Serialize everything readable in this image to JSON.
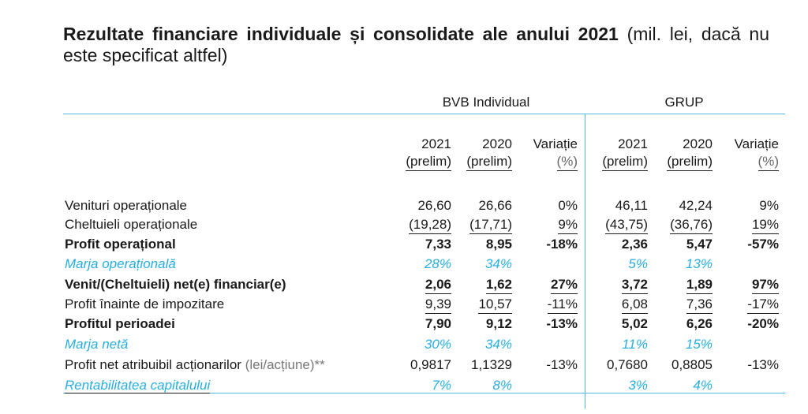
{
  "title": {
    "bold": "Rezultate financiare individuale și consolidate ale anului 2021",
    "normal": " (mil. lei, dacă nu este specificat altfel)"
  },
  "groups": {
    "individual": "BVB Individual",
    "group": "GRUP"
  },
  "columns": [
    {
      "year": "2021",
      "sub": "(prelim)"
    },
    {
      "year": "2020",
      "sub": "(prelim)"
    },
    {
      "year": "Variație",
      "sub": "(%)"
    },
    {
      "year": "2021",
      "sub": "(prelim)"
    },
    {
      "year": "2020",
      "sub": "(prelim)"
    },
    {
      "year": "Variație",
      "sub": "(%)"
    }
  ],
  "rows": [
    {
      "label": "Venituri operaționale",
      "style": "normal",
      "values": [
        "26,60",
        "26,66",
        "0%",
        "46,11",
        "42,24",
        "9%"
      ]
    },
    {
      "label": "Cheltuieli operaționale",
      "style": "normal",
      "underline": true,
      "values": [
        "(19,28)",
        "(17,71)",
        "9%",
        "(43,75)",
        "(36,76)",
        "19%"
      ]
    },
    {
      "label": "Profit operațional",
      "style": "bold",
      "values": [
        "7,33",
        "8,95",
        "-18%",
        "2,36",
        "5,47",
        "-57%"
      ]
    },
    {
      "label": "Marja operațională",
      "style": "blue",
      "values": [
        "28%",
        "34%",
        "",
        "5%",
        "13%",
        ""
      ]
    },
    {
      "label": "Venit/(Cheltuieli) net(e) financiar(e)",
      "style": "bold",
      "underline": true,
      "values": [
        "2,06",
        "1,62",
        "27%",
        "3,72",
        "1,89",
        "97%"
      ]
    },
    {
      "label": "Profit înainte de impozitare",
      "style": "normal",
      "underline": true,
      "values": [
        "9,39",
        "10,57",
        "-11%",
        "6,08",
        "7,36",
        "-17%"
      ]
    },
    {
      "label": "Profitul perioadei",
      "style": "bold",
      "values": [
        "7,90",
        "9,12",
        "-13%",
        "5,02",
        "6,26",
        "-20%"
      ]
    },
    {
      "label": "Marja netă",
      "style": "blue",
      "values": [
        "30%",
        "34%",
        "",
        "11%",
        "15%",
        ""
      ]
    },
    {
      "label": "Profit net atribuibil acționarilor",
      "suffix": " (lei/acțiune)**",
      "style": "normal",
      "values": [
        "0,9817",
        "1,1329",
        "-13%",
        "0,7680",
        "0,8805",
        "-13%"
      ]
    },
    {
      "label": "Rentabilitatea capitalului",
      "style": "blue",
      "underline_label": true,
      "values": [
        "7%",
        "8%",
        "",
        "3%",
        "4%",
        ""
      ]
    }
  ]
}
